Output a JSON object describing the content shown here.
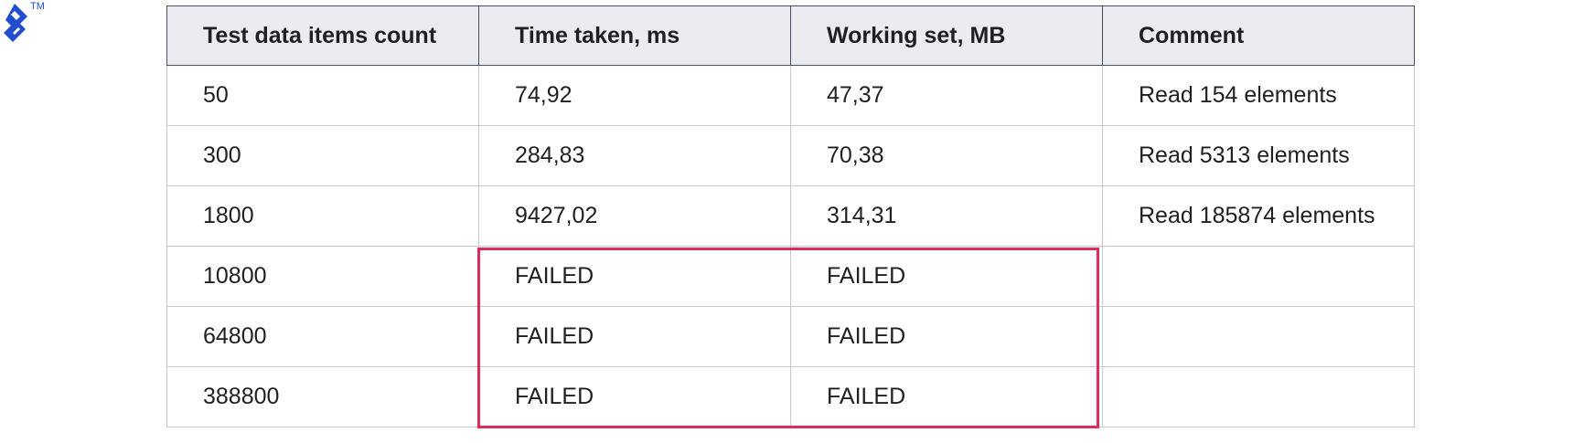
{
  "logo": {
    "tm": "TM"
  },
  "table": {
    "header": [
      "Test data items count",
      "Time taken, ms",
      "Working set, MB",
      "Comment"
    ],
    "rows": [
      [
        "50",
        "74,92",
        "47,37",
        "Read 154 elements"
      ],
      [
        "300",
        "284,83",
        "70,38",
        "Read 5313 elements"
      ],
      [
        "1800",
        "9427,02",
        "314,31",
        "Read 185874 elements"
      ],
      [
        "10800",
        "FAILED",
        "FAILED"
      ],
      [
        "64800",
        "FAILED",
        "FAILED"
      ],
      [
        "388800",
        "FAILED",
        "FAILED"
      ]
    ]
  }
}
